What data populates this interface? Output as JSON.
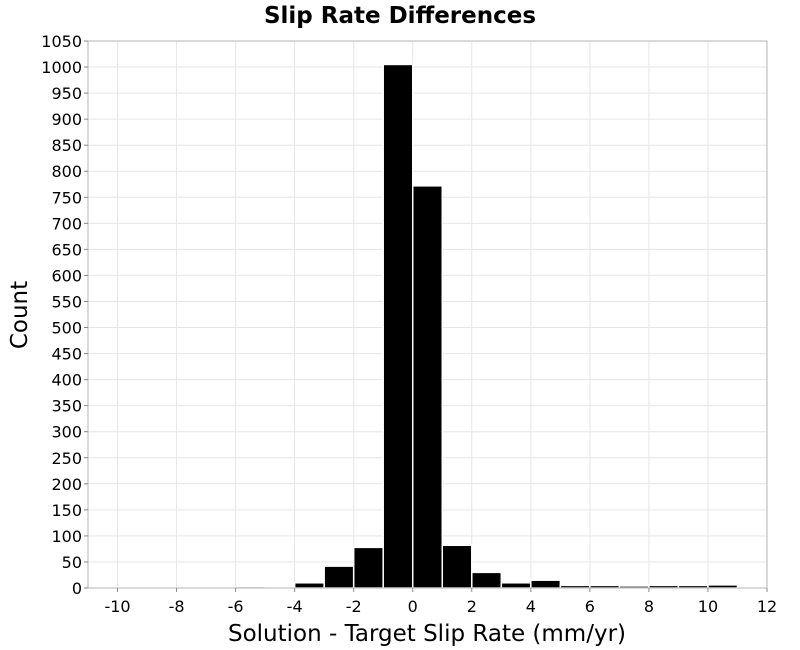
{
  "chart_data": {
    "type": "bar",
    "title": "Slip Rate Differences",
    "xlabel": "Solution - Target Slip Rate (mm/yr)",
    "ylabel": "Count",
    "xlim": [
      -11,
      12
    ],
    "ylim": [
      0,
      1050
    ],
    "xticks": [
      -10,
      -8,
      -6,
      -4,
      -2,
      0,
      2,
      4,
      6,
      8,
      10,
      12
    ],
    "yticks": [
      0,
      50,
      100,
      150,
      200,
      250,
      300,
      350,
      400,
      450,
      500,
      550,
      600,
      650,
      700,
      750,
      800,
      850,
      900,
      950,
      1000,
      1050
    ],
    "bin_width": 1,
    "bins": [
      {
        "x": -10,
        "value": 0
      },
      {
        "x": -9,
        "value": 0
      },
      {
        "x": -8,
        "value": 0
      },
      {
        "x": -7,
        "value": 0
      },
      {
        "x": -6,
        "value": 1
      },
      {
        "x": -5.5,
        "value": 3
      },
      {
        "x": -4,
        "value": 1
      },
      {
        "x": -3.5,
        "value": 10
      },
      {
        "x": -2.5,
        "value": 42
      },
      {
        "x": -1.5,
        "value": 78
      },
      {
        "x": -0.5,
        "value": 1005
      },
      {
        "x": 0.5,
        "value": 772
      },
      {
        "x": 1.5,
        "value": 82
      },
      {
        "x": 2.5,
        "value": 30
      },
      {
        "x": 3.5,
        "value": 10
      },
      {
        "x": 4.5,
        "value": 15
      },
      {
        "x": 5.5,
        "value": 5
      },
      {
        "x": 6.5,
        "value": 5
      },
      {
        "x": 7.5,
        "value": 4
      },
      {
        "x": 8.5,
        "value": 5
      },
      {
        "x": 9.5,
        "value": 5
      },
      {
        "x": 10.5,
        "value": 6
      }
    ],
    "grid": true,
    "bar_color": "#000000"
  }
}
